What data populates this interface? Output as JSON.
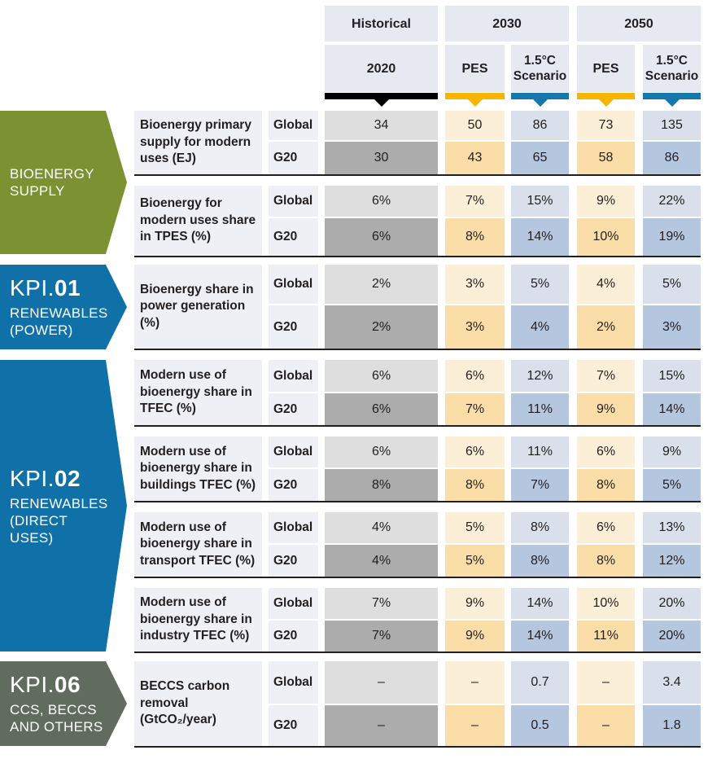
{
  "header": {
    "historical": "Historical",
    "year_2030": "2030",
    "year_2050": "2050",
    "year_2020": "2020",
    "pes_2030": "PES",
    "scen_2030": "1.5°C Scenario",
    "pes_2050": "PES",
    "scen_2050": "1.5°C Scenario"
  },
  "sections": [
    {
      "kpi_prefix": "",
      "kpi_number": "",
      "title": "BIOENERGY SUPPLY",
      "color": "#7c9232"
    },
    {
      "kpi_prefix": "KPI.",
      "kpi_number": "01",
      "title": "RENEWABLES (POWER)",
      "color": "#0f71a8"
    },
    {
      "kpi_prefix": "KPI.",
      "kpi_number": "02",
      "title": "RENEWABLES (DIRECT USES)",
      "color": "#0f71a8"
    },
    {
      "kpi_prefix": "KPI.",
      "kpi_number": "06",
      "title": "CCS, BECCS AND OTHERS",
      "color": "#606c5e"
    }
  ],
  "colors": {
    "historical_bar": "#000000",
    "pes_bar": "#f7b500",
    "scenario_bar": "#1578ac",
    "hist_global": "#dedede",
    "hist_g20": "#acacac",
    "pes_global": "#fcefd8",
    "pes_g20": "#fbdea7",
    "scen_global": "#d9e0ec",
    "scen_g20": "#b5c6df"
  },
  "chart_data": {
    "type": "table",
    "columns": [
      "2020 Historical",
      "2030 PES",
      "2030 1.5°C Scenario",
      "2050 PES",
      "2050 1.5°C Scenario"
    ],
    "rows": [
      {
        "indicator": "Bioenergy primary supply for modern uses (EJ)",
        "global_label": "Global",
        "g20_label": "G20",
        "global": [
          "34",
          "50",
          "86",
          "73",
          "135"
        ],
        "g20": [
          "30",
          "43",
          "65",
          "58",
          "86"
        ]
      },
      {
        "indicator": "Bioenergy for modern uses share in TPES (%)",
        "global_label": "Global",
        "g20_label": "G20",
        "global": [
          "6%",
          "7%",
          "15%",
          "9%",
          "22%"
        ],
        "g20": [
          "6%",
          "8%",
          "14%",
          "10%",
          "19%"
        ]
      },
      {
        "indicator": "Bioenergy share in power generation (%)",
        "global_label": "Global",
        "g20_label": "G20",
        "global": [
          "2%",
          "3%",
          "5%",
          "4%",
          "5%"
        ],
        "g20": [
          "2%",
          "3%",
          "4%",
          "2%",
          "3%"
        ]
      },
      {
        "indicator": "Modern use of bioenergy share in TFEC (%)",
        "global_label": "Global",
        "g20_label": "G20",
        "global": [
          "6%",
          "6%",
          "12%",
          "7%",
          "15%"
        ],
        "g20": [
          "6%",
          "7%",
          "11%",
          "9%",
          "14%"
        ]
      },
      {
        "indicator": "Modern use of bioenergy share in buildings TFEC (%)",
        "global_label": "Global",
        "g20_label": "G20",
        "global": [
          "6%",
          "6%",
          "11%",
          "6%",
          "9%"
        ],
        "g20": [
          "8%",
          "8%",
          "7%",
          "8%",
          "5%"
        ]
      },
      {
        "indicator": "Modern use of bioenergy share in transport TFEC (%)",
        "global_label": "Global",
        "g20_label": "G20",
        "global": [
          "4%",
          "5%",
          "8%",
          "6%",
          "13%"
        ],
        "g20": [
          "4%",
          "5%",
          "8%",
          "8%",
          "12%"
        ]
      },
      {
        "indicator": "Modern use of bioenergy share in industry TFEC (%)",
        "global_label": "Global",
        "g20_label": "G20",
        "global": [
          "7%",
          "9%",
          "14%",
          "10%",
          "20%"
        ],
        "g20": [
          "7%",
          "9%",
          "14%",
          "11%",
          "20%"
        ]
      },
      {
        "indicator": "BECCS carbon removal (GtCO₂/year)",
        "global_label": "Global",
        "g20_label": "G20",
        "global": [
          "–",
          "–",
          "0.7",
          "–",
          "3.4"
        ],
        "g20": [
          "–",
          "–",
          "0.5",
          "–",
          "1.8"
        ]
      }
    ]
  }
}
